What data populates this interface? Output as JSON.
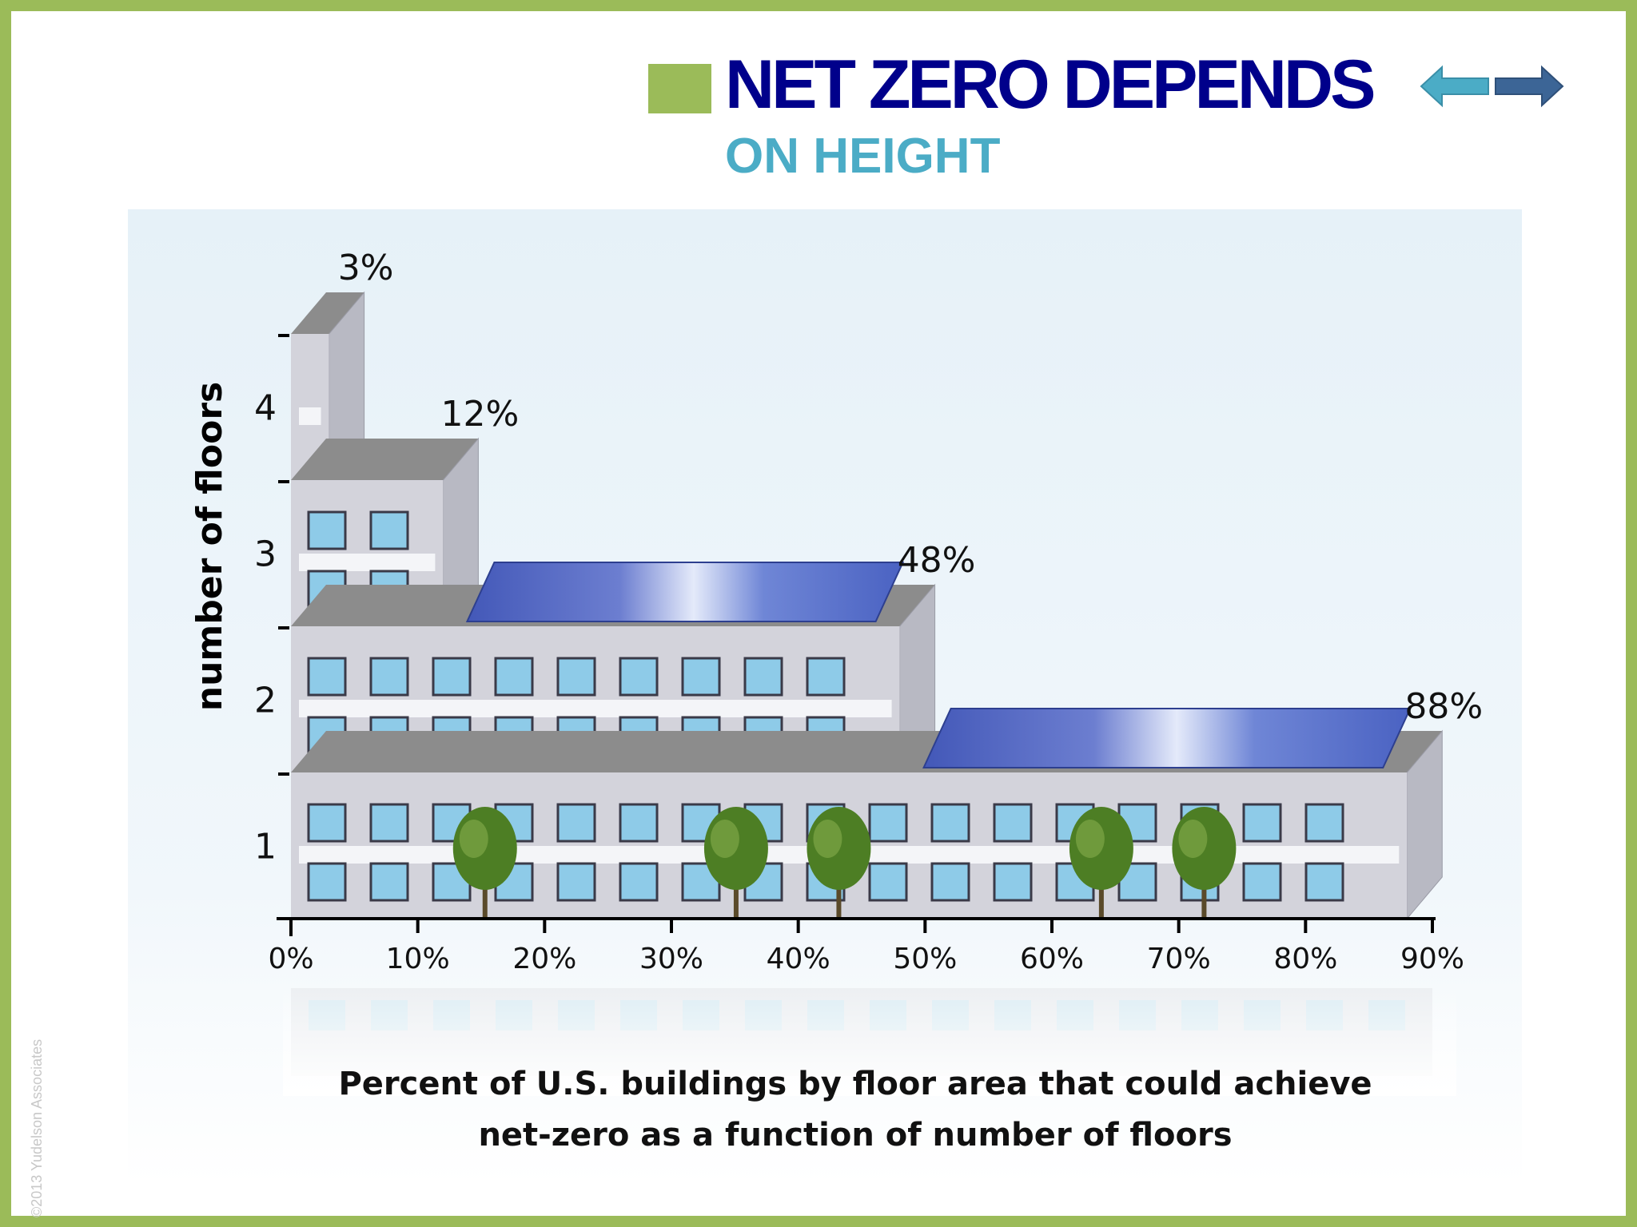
{
  "slide": {
    "title": "NET ZERO DEPENDS",
    "subtitle": "ON HEIGHT",
    "copyright": "©2013 Yudelson Associates",
    "colors": {
      "accent": "#9bbb59",
      "title": "#00008b",
      "subtitle": "#4bacc6",
      "arrow_left": "#4bacc6",
      "arrow_right": "#3c6596"
    },
    "icons": {
      "left": "arrow-left-icon",
      "right": "arrow-right-icon"
    }
  },
  "chart_data": {
    "type": "bar",
    "orientation": "horizontal",
    "title": "Percent of U.S. buildings by floor area that could achieve net-zero as a function of number of floors",
    "title_lines": [
      "Percent of U.S. buildings by floor area that could achieve",
      "net-zero as a function of number of floors"
    ],
    "ylabel": "number of floors",
    "categories": [
      "1",
      "2",
      "3",
      "4"
    ],
    "values": [
      88,
      48,
      12,
      3
    ],
    "value_labels": [
      "88%",
      "48%",
      "12%",
      "3%"
    ],
    "xlim": [
      0,
      90
    ],
    "xticks": [
      "0%",
      "10%",
      "20%",
      "30%",
      "40%",
      "50%",
      "60%",
      "70%",
      "80%",
      "90%"
    ],
    "solar_panels_on_floors": [
      "1",
      "2"
    ],
    "grid": false,
    "legend": "none",
    "colors": {
      "building": "#d3d3db",
      "building_side": "#b8b9c3",
      "roof": "#8c8c8c",
      "window": "#8ecbe8",
      "panel": "#5068bf",
      "tree": "#4d7e24",
      "axis": "#000000"
    }
  }
}
